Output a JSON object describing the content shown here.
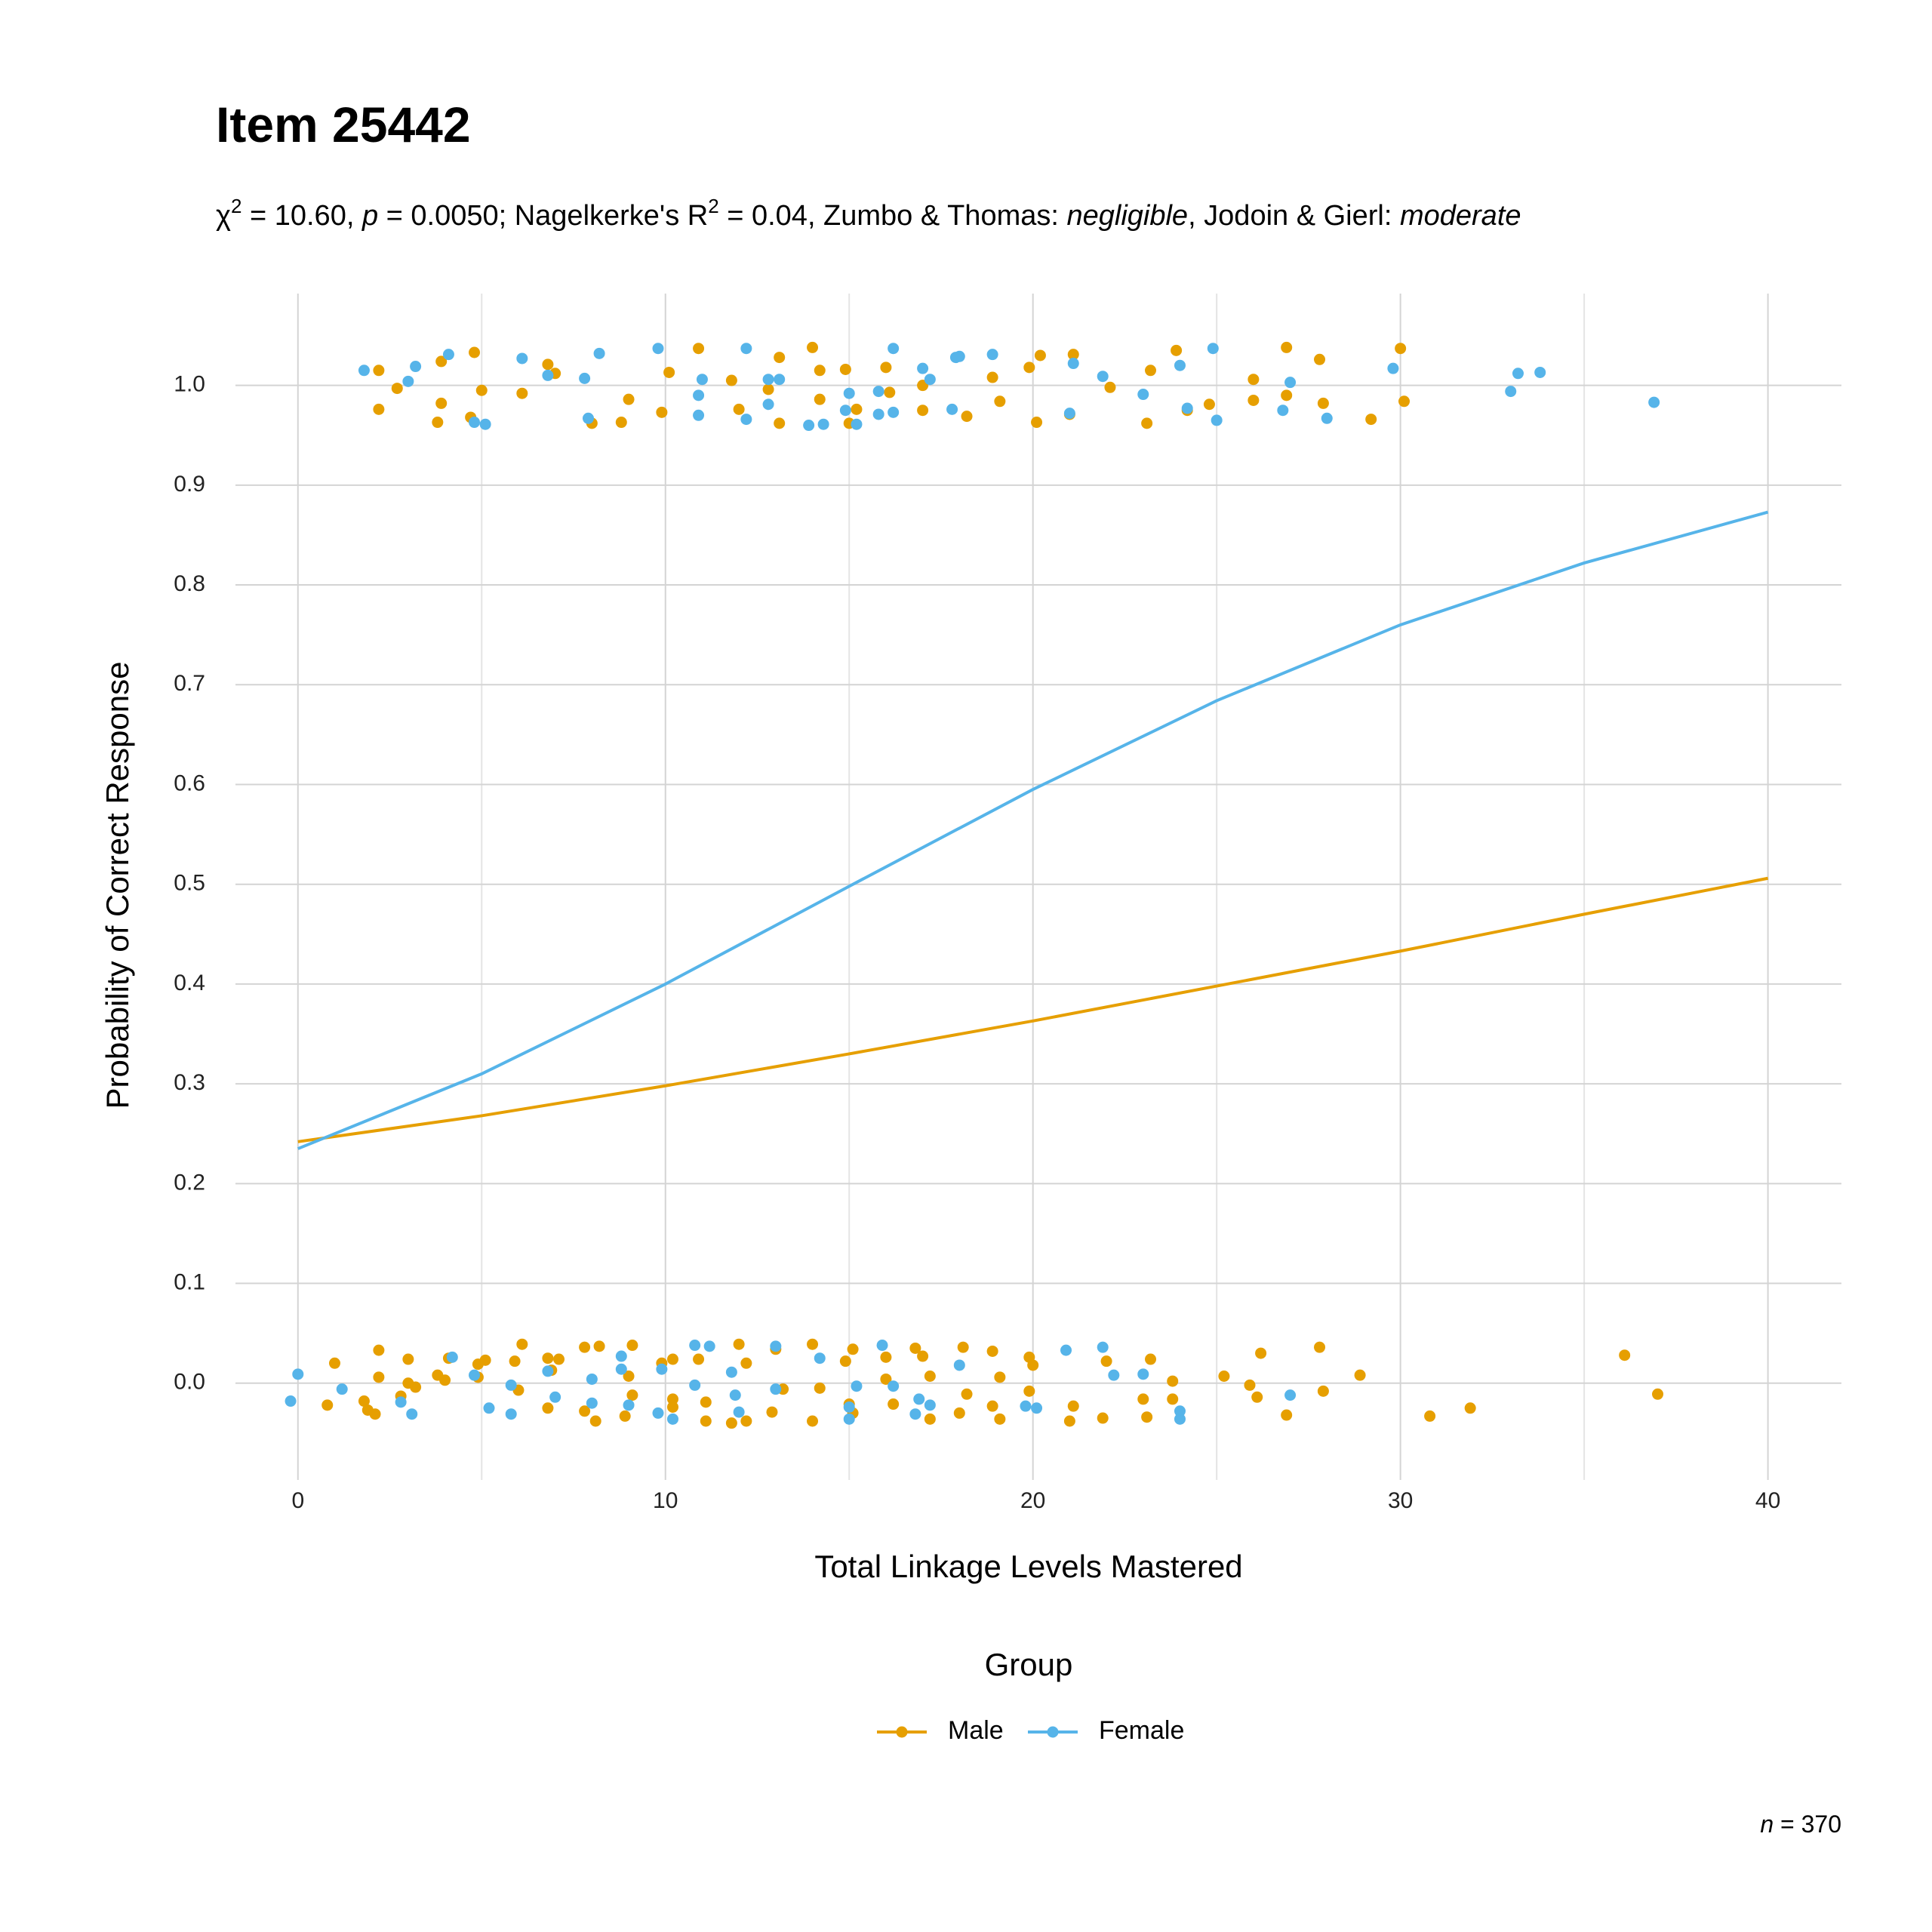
{
  "chart_data": {
    "type": "line",
    "title": "Item 25442",
    "subtitle_parts": [
      "χ",
      "2",
      " = 10.60, ",
      "p",
      " = 0.0050; Nagelkerke's R",
      "2",
      " = 0.04, Zumbo & Thomas: ",
      "negligible",
      ", Jodoin & Gierl: ",
      "moderate"
    ],
    "x_label": "Total Linkage Levels Mastered",
    "y_label": "Probability of Correct Response",
    "legend_title": "Group",
    "annotation": {
      "label": "n",
      "sep": " = ",
      "value": 370
    },
    "xlim": [
      -1.7,
      42
    ],
    "ylim": [
      -0.097,
      1.092
    ],
    "xticks": [
      0,
      10,
      20,
      30,
      40
    ],
    "xminor": [
      5,
      15,
      25,
      35
    ],
    "yticks": [
      {
        "value": 0,
        "label": "0.0"
      },
      0.1,
      0.2,
      0.3,
      0.4,
      0.5,
      0.6,
      0.7,
      0.8,
      0.9,
      {
        "value": 1,
        "label": "1.0"
      }
    ],
    "grid": true,
    "series": [
      {
        "name": "Male",
        "color": "#E69F00",
        "x": [
          0,
          5,
          10,
          15,
          20,
          25,
          30,
          35,
          40
        ],
        "values": [
          0.242,
          0.268,
          0.298,
          0.33,
          0.363,
          0.398,
          0.433,
          0.47,
          0.506
        ],
        "points_x": [
          2.2,
          2.2,
          2.7,
          3.9,
          3.9,
          3.8,
          4.8,
          4.7,
          5.0,
          6.1,
          6.8,
          7.0,
          8.0,
          8.8,
          9.0,
          9.9,
          10.1,
          10.9,
          11.8,
          12.0,
          12.8,
          13.1,
          13.1,
          14.0,
          14.2,
          14.2,
          14.9,
          15.0,
          15.2,
          16.0,
          16.1,
          17.0,
          17.0,
          18.2,
          18.9,
          19.1,
          19.9,
          20.2,
          20.1,
          21.1,
          21.0,
          22.1,
          23.1,
          23.2,
          23.9,
          24.2,
          24.8,
          26.0,
          26.0,
          26.9,
          26.9,
          27.8,
          27.9,
          29.2,
          30.0,
          30.1,
          0.8,
          1.0,
          1.8,
          1.9,
          2.1,
          2.2,
          2.2,
          2.8,
          3.0,
          3.0,
          3.2,
          3.8,
          4.0,
          4.1,
          4.9,
          4.9,
          5.1,
          5.9,
          6.0,
          6.1,
          6.8,
          6.8,
          6.9,
          7.1,
          7.8,
          7.8,
          8.1,
          8.2,
          8.9,
          9.0,
          9.1,
          9.1,
          9.9,
          10.2,
          10.2,
          10.2,
          10.9,
          11.1,
          11.1,
          11.8,
          12.0,
          12.2,
          12.2,
          12.9,
          13.0,
          13.2,
          14.0,
          14.0,
          14.2,
          14.9,
          15.0,
          15.1,
          15.1,
          16.0,
          16.0,
          16.2,
          16.8,
          17.0,
          17.2,
          17.2,
          18.0,
          18.1,
          18.2,
          18.9,
          18.9,
          19.1,
          19.1,
          19.9,
          19.9,
          20.0,
          21.0,
          21.1,
          21.9,
          22.0,
          23.0,
          23.1,
          23.2,
          23.8,
          23.8,
          25.2,
          25.9,
          26.1,
          26.2,
          26.9,
          27.8,
          27.9,
          28.9,
          30.8,
          31.9,
          36.1,
          37.0
        ],
        "points_y": [
          1.015,
          0.976,
          0.997,
          1.024,
          0.982,
          0.963,
          1.033,
          0.968,
          0.995,
          0.992,
          1.021,
          1.012,
          0.962,
          0.963,
          0.986,
          0.973,
          1.013,
          1.037,
          1.005,
          0.976,
          0.996,
          1.028,
          0.962,
          1.038,
          1.015,
          0.986,
          1.016,
          0.962,
          0.976,
          1.018,
          0.993,
          1.0,
          0.975,
          0.969,
          1.008,
          0.984,
          1.018,
          1.03,
          0.963,
          1.031,
          0.971,
          0.998,
          0.962,
          1.015,
          1.035,
          0.975,
          0.981,
          1.006,
          0.985,
          1.038,
          0.99,
          1.026,
          0.982,
          0.966,
          1.037,
          0.984,
          -0.022,
          0.02,
          -0.018,
          -0.027,
          -0.031,
          0.033,
          0.006,
          -0.013,
          0.024,
          0.0,
          -0.004,
          0.008,
          0.003,
          0.025,
          0.019,
          0.006,
          0.023,
          0.022,
          -0.007,
          0.039,
          0.025,
          -0.025,
          0.013,
          0.024,
          -0.028,
          0.036,
          -0.038,
          0.037,
          -0.033,
          0.007,
          0.038,
          -0.012,
          0.02,
          -0.016,
          0.024,
          -0.024,
          0.024,
          -0.038,
          -0.019,
          -0.04,
          0.039,
          -0.038,
          0.02,
          -0.029,
          0.034,
          -0.006,
          -0.038,
          0.039,
          -0.005,
          0.022,
          -0.021,
          0.034,
          -0.03,
          0.004,
          0.026,
          -0.021,
          0.035,
          0.027,
          -0.036,
          0.007,
          -0.03,
          0.036,
          -0.011,
          0.032,
          -0.023,
          -0.036,
          0.006,
          0.026,
          -0.008,
          0.018,
          -0.038,
          -0.023,
          -0.035,
          0.022,
          -0.016,
          -0.034,
          0.024,
          0.002,
          -0.016,
          0.007,
          -0.002,
          -0.014,
          0.03,
          -0.032,
          0.036,
          -0.008,
          0.008,
          -0.033,
          -0.025,
          0.028,
          -0.011
        ]
      },
      {
        "name": "Female",
        "color": "#56B4E9",
        "x": [
          0,
          5,
          10,
          15,
          20,
          25,
          30,
          35,
          40
        ],
        "values": [
          0.235,
          0.31,
          0.4,
          0.498,
          0.595,
          0.684,
          0.76,
          0.822,
          0.873
        ],
        "points_x": [
          1.8,
          3.0,
          3.2,
          4.1,
          4.8,
          5.1,
          6.1,
          6.8,
          7.8,
          7.9,
          8.2,
          9.8,
          10.9,
          10.9,
          11.0,
          12.2,
          12.2,
          12.8,
          12.8,
          13.1,
          13.9,
          14.3,
          14.9,
          15.0,
          15.2,
          15.8,
          15.8,
          16.2,
          16.2,
          17.0,
          17.2,
          17.9,
          17.8,
          18.0,
          18.9,
          21.1,
          21.0,
          21.9,
          23.0,
          24.0,
          24.2,
          24.9,
          25.0,
          26.8,
          27.0,
          28.0,
          29.8,
          33.0,
          33.2,
          33.8,
          36.9,
          -0.2,
          0.0,
          1.2,
          2.8,
          3.1,
          4.2,
          4.8,
          5.2,
          5.8,
          5.8,
          6.8,
          7.0,
          8.0,
          8.0,
          8.8,
          8.8,
          9.0,
          9.8,
          9.9,
          10.2,
          10.8,
          10.8,
          11.2,
          11.8,
          11.9,
          12.0,
          13.0,
          13.0,
          14.2,
          15.0,
          15.0,
          15.2,
          15.9,
          16.2,
          16.8,
          16.9,
          17.2,
          18.0,
          19.8,
          20.1,
          20.9,
          21.9,
          22.2,
          23.0,
          24.0,
          24.0,
          27.0
        ],
        "points_y": [
          1.015,
          1.004,
          1.019,
          1.031,
          0.963,
          0.961,
          1.027,
          1.01,
          1.007,
          0.967,
          1.032,
          1.037,
          0.99,
          0.97,
          1.006,
          1.037,
          0.966,
          1.006,
          0.981,
          1.006,
          0.96,
          0.961,
          0.975,
          0.992,
          0.961,
          0.994,
          0.971,
          1.037,
          0.973,
          1.017,
          1.006,
          1.028,
          0.976,
          1.029,
          1.031,
          1.022,
          0.972,
          1.009,
          0.991,
          1.02,
          0.977,
          1.037,
          0.965,
          0.975,
          1.003,
          0.967,
          1.017,
          0.994,
          1.012,
          1.013,
          0.983,
          -0.018,
          0.009,
          -0.006,
          -0.019,
          -0.031,
          0.026,
          0.008,
          -0.025,
          -0.031,
          -0.002,
          0.012,
          -0.014,
          -0.02,
          0.004,
          0.027,
          0.014,
          -0.022,
          -0.03,
          0.014,
          -0.036,
          0.038,
          -0.002,
          0.037,
          0.011,
          -0.012,
          -0.029,
          0.037,
          -0.006,
          0.025,
          -0.024,
          -0.036,
          -0.003,
          0.038,
          -0.003,
          -0.031,
          -0.016,
          -0.022,
          0.018,
          -0.023,
          -0.025,
          0.033,
          0.036,
          0.008,
          0.009,
          -0.028,
          -0.036,
          -0.012
        ]
      }
    ]
  }
}
